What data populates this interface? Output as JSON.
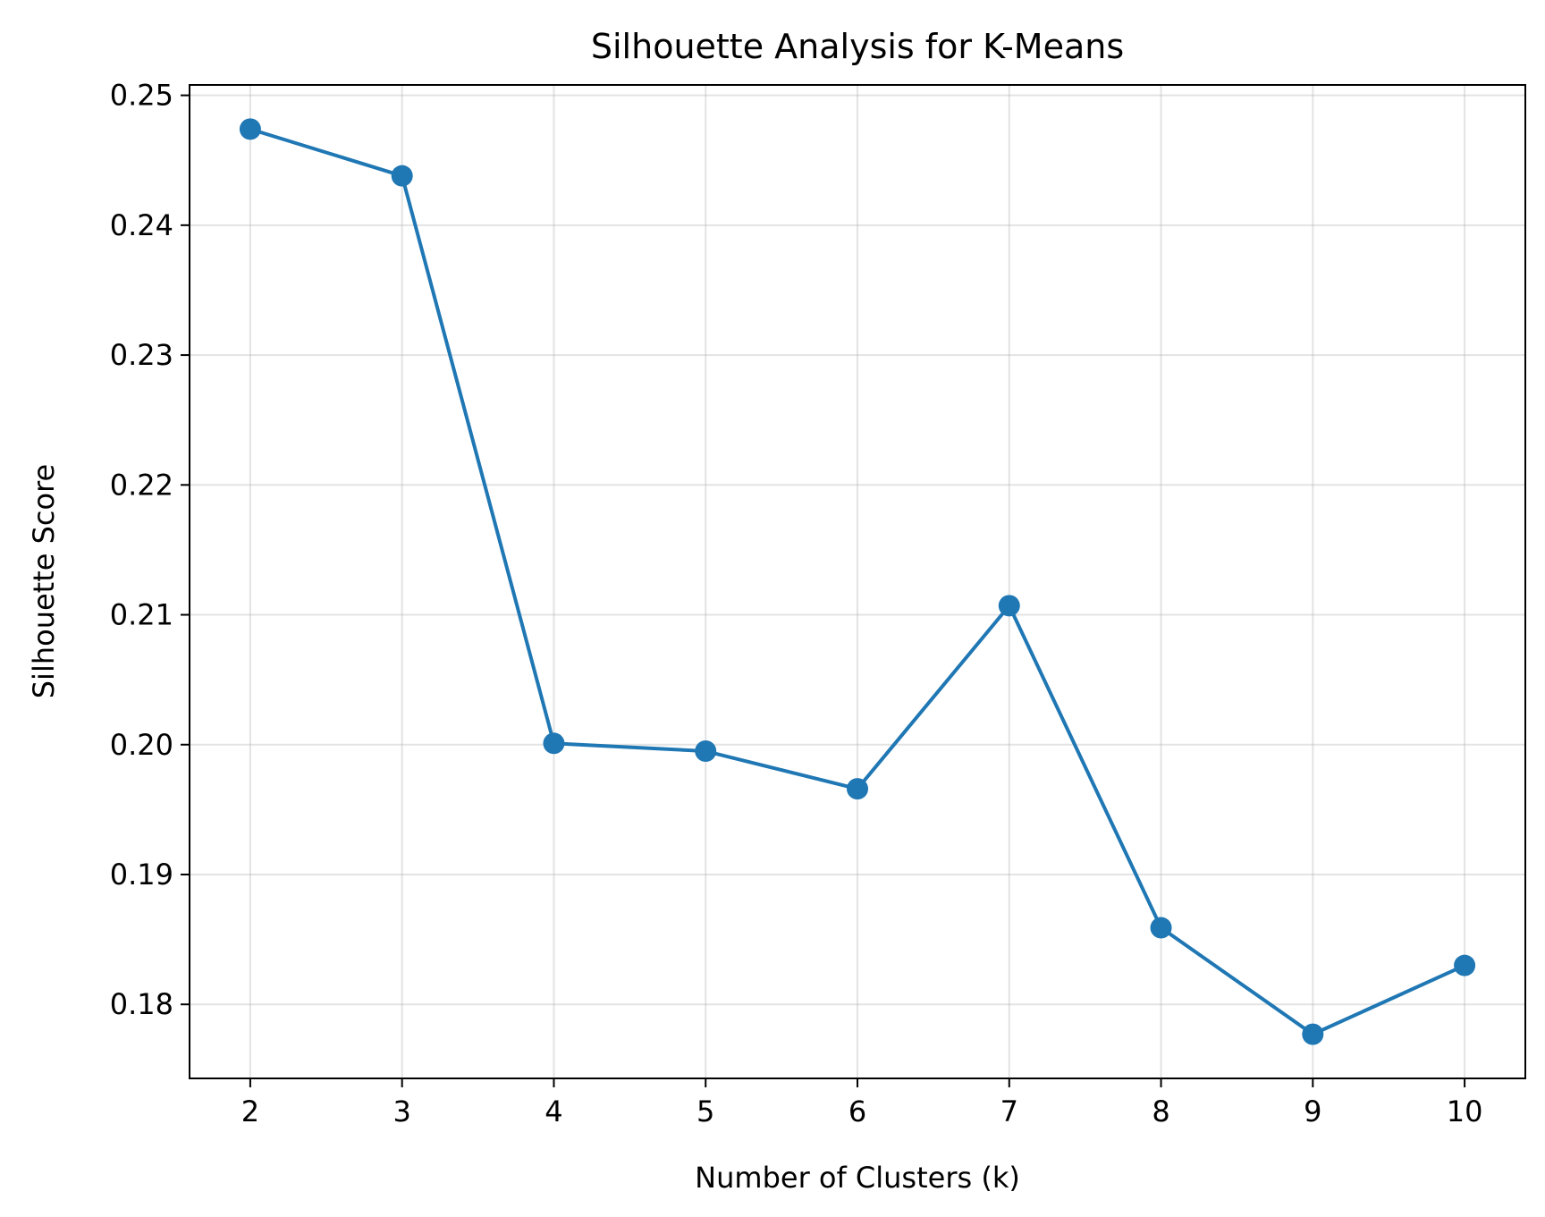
{
  "chart_data": {
    "type": "line",
    "title": "Silhouette Analysis for K-Means",
    "xlabel": "Number of Clusters (k)",
    "ylabel": "Silhouette Score",
    "x": [
      2,
      3,
      4,
      5,
      6,
      7,
      8,
      9,
      10
    ],
    "series": [
      {
        "values": [
          0.2474,
          0.2438,
          0.2001,
          0.1995,
          0.1966,
          0.2107,
          0.1859,
          0.1777,
          0.183
        ],
        "color": "#1f77b4",
        "marker": "circle"
      }
    ],
    "xticks": [
      "2",
      "3",
      "4",
      "5",
      "6",
      "7",
      "8",
      "9",
      "10"
    ],
    "yticks": [
      "0.18",
      "0.19",
      "0.20",
      "0.21",
      "0.22",
      "0.23",
      "0.24",
      "0.25"
    ],
    "ytick_values": [
      0.18,
      0.19,
      0.2,
      0.21,
      0.22,
      0.23,
      0.24,
      0.25
    ],
    "xlim": [
      1.6,
      10.4
    ],
    "ylim": [
      0.1743,
      0.2508
    ],
    "grid": true,
    "legend": false
  }
}
